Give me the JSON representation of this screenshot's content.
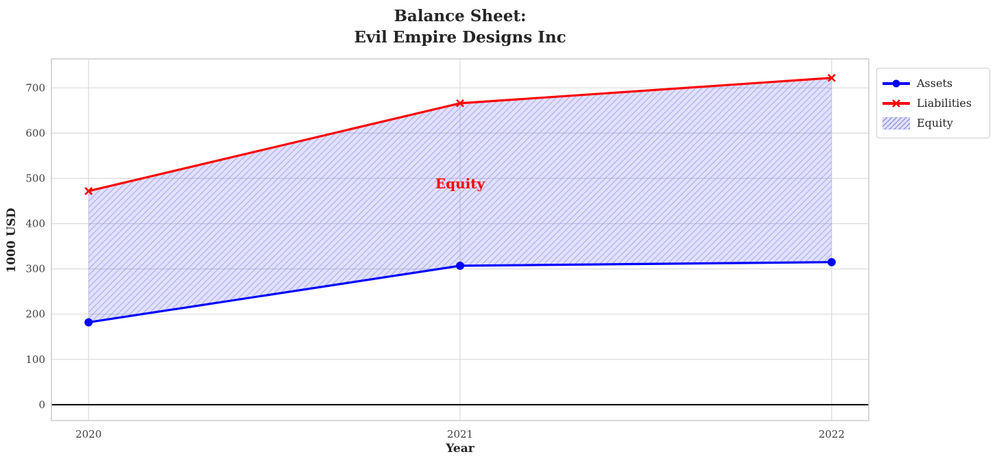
{
  "title": {
    "line1": "Balance Sheet:",
    "line2": "Evil Empire Designs Inc"
  },
  "chart_data": {
    "type": "line",
    "x": [
      2020,
      2021,
      2022
    ],
    "series": [
      {
        "name": "Assets",
        "values": [
          182,
          307,
          315
        ],
        "color": "#0000ff",
        "marker": "circle"
      },
      {
        "name": "Liabilities",
        "values": [
          472,
          666,
          722
        ],
        "color": "#ff0000",
        "marker": "x"
      }
    ],
    "fill_between": {
      "label": "Equity",
      "between": [
        "Assets",
        "Liabilities"
      ],
      "fill_color": "#0000ff",
      "fill_opacity": 0.12,
      "hatch": "diagonal",
      "hatch_color": "#8888dd"
    },
    "annotation": {
      "text": "Equity",
      "x": 2021,
      "y": 488,
      "color": "#ff0000"
    },
    "xlabel": "Year",
    "ylabel": "1000 USD",
    "xticks": [
      2020,
      2021,
      2022
    ],
    "yticks": [
      0,
      100,
      200,
      300,
      400,
      500,
      600,
      700
    ],
    "xlim": [
      2019.9,
      2022.1
    ],
    "ylim": [
      -35,
      764
    ],
    "grid": true,
    "grid_color": "#d9d9d9",
    "spine_color": "#cccccc",
    "zero_line": true,
    "zero_line_color": "#000000",
    "legend": {
      "position": "upper-right-outside",
      "entries": [
        "Assets",
        "Liabilities",
        "Equity"
      ]
    }
  }
}
